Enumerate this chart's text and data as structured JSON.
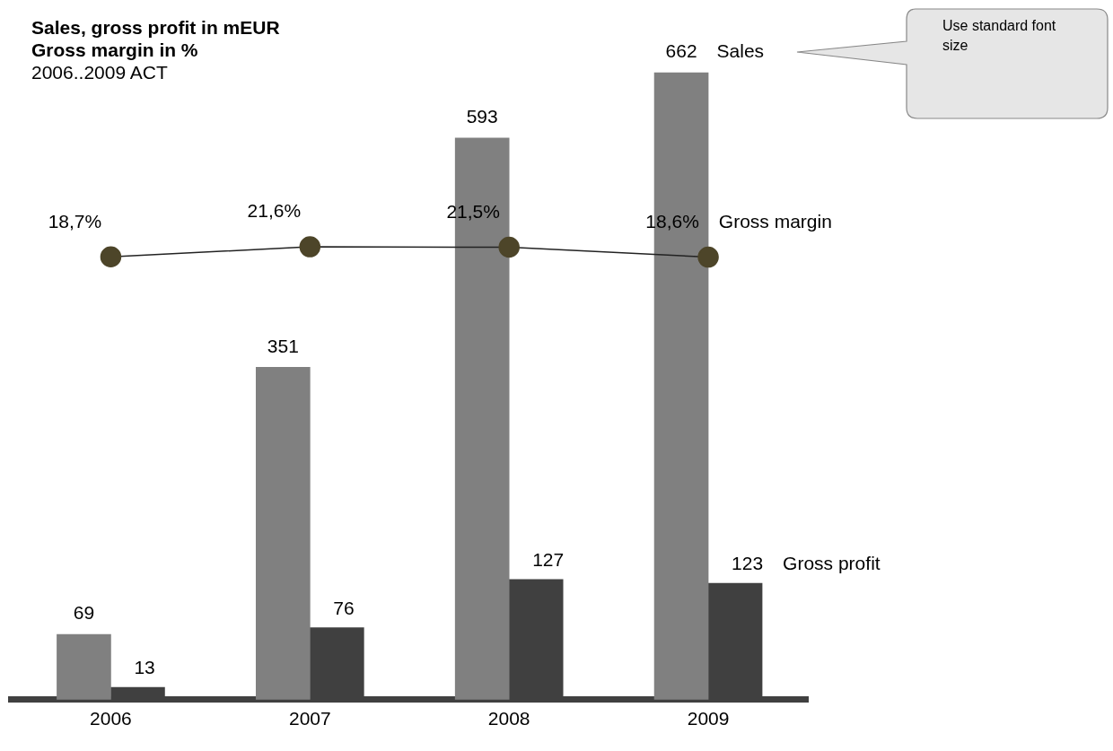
{
  "chart_data": {
    "type": "bar",
    "title": "Sales, gross profit in mEUR",
    "subtitle": "Gross margin in %",
    "categories": [
      "2006",
      "2007",
      "2008",
      "2009"
    ],
    "series": [
      {
        "name": "Sales",
        "color": "#808080",
        "values": [
          69,
          351,
          593,
          662
        ],
        "value_labels": [
          "69",
          "351",
          "593",
          "662"
        ]
      },
      {
        "name": "Gross profit",
        "color": "#404040",
        "values": [
          13,
          76,
          127,
          123
        ],
        "value_labels": [
          "13",
          "76",
          "127",
          "123"
        ]
      },
      {
        "name": "Gross margin",
        "type": "line",
        "axis": "y2",
        "color": "#4d4529",
        "values": [
          18.7,
          21.6,
          21.5,
          18.6
        ],
        "value_labels": [
          "18,7%",
          "21,6%",
          "21,5%",
          "18,6%"
        ]
      }
    ],
    "tick_labels": "x",
    "grid": false,
    "legend": false,
    "marker": "circle",
    "line_style": "solid",
    "annotations": [
      "2006..2009 ACT",
      "Use standard font size"
    ]
  }
}
